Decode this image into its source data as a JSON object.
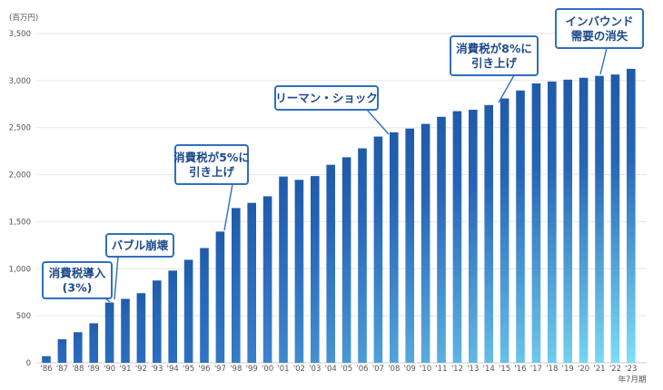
{
  "chart_data": {
    "type": "bar",
    "unit_label": "(百万円)",
    "categories": [
      "'86",
      "'87",
      "'88",
      "'89",
      "'90",
      "'91",
      "'92",
      "'93",
      "'94",
      "'95",
      "'96",
      "'97",
      "'98",
      "'99",
      "'00",
      "'01",
      "'02",
      "'03",
      "'04",
      "'05",
      "'06",
      "'07",
      "'08",
      "'09",
      "'10",
      "'11",
      "'12",
      "'13",
      "'14",
      "'15",
      "'16",
      "'17",
      "'18",
      "'19",
      "'20",
      "'21",
      "'22",
      "'23"
    ],
    "values": [
      70,
      250,
      325,
      420,
      640,
      680,
      740,
      875,
      980,
      1095,
      1220,
      1395,
      1645,
      1700,
      1770,
      1980,
      1945,
      1985,
      2105,
      2185,
      2280,
      2405,
      2450,
      2490,
      2540,
      2615,
      2675,
      2690,
      2740,
      2810,
      2895,
      2970,
      2990,
      3010,
      3030,
      3050,
      3065,
      3125
    ],
    "x_suffix": "年7月期",
    "ylim": [
      0,
      3500
    ],
    "yticks": [
      0,
      500,
      1000,
      1500,
      2000,
      2500,
      3000,
      3500
    ],
    "ytick_labels": [
      "0",
      "500",
      "1,000",
      "1,500",
      "2,000",
      "2,500",
      "3,000",
      "3,500"
    ],
    "grid": true,
    "annotations": [
      {
        "lines": [
          "消費税導入",
          "(3%)"
        ]
      },
      {
        "lines": [
          "バブル崩壊"
        ]
      },
      {
        "lines": [
          "消費税が5%に",
          "引き上げ"
        ]
      },
      {
        "lines": [
          "リーマン・ショック"
        ]
      },
      {
        "lines": [
          "消費税が8%に",
          "引き上げ"
        ]
      },
      {
        "lines": [
          "インバウンド",
          "需要の消失"
        ]
      }
    ],
    "colors": {
      "bar_dark": "#1f5ba9",
      "bar_mid": "#2a6cc0",
      "bar_light": "#7fe0f7",
      "callout_border": "#2d6fc2",
      "callout_text": "#1c4a8a",
      "grid": "#e6e6e6",
      "baseline": "#cfcfcf"
    }
  }
}
